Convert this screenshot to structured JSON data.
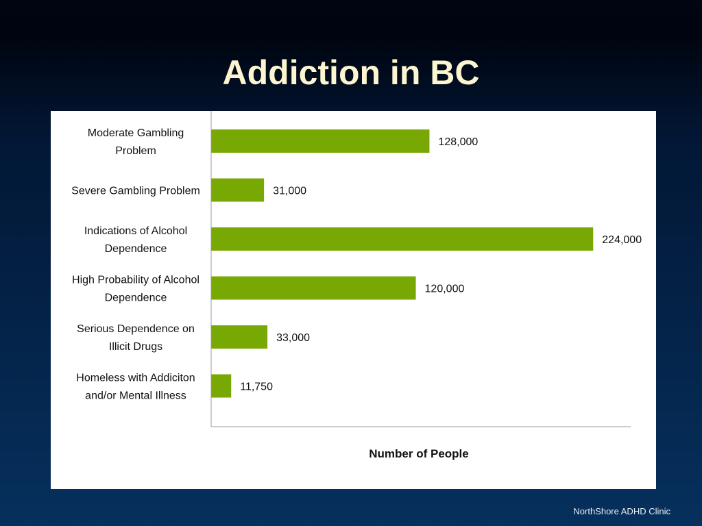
{
  "slide": {
    "title": "Addiction in BC",
    "footer": "NorthShore ADHD Clinic"
  },
  "colors": {
    "bar": "#77a804",
    "axis": "#9a9a9a",
    "title": "#fdf5cf"
  },
  "chart_data": {
    "type": "bar",
    "orientation": "horizontal",
    "categories": [
      [
        "Moderate Gambling",
        "Problem"
      ],
      [
        "Severe Gambling Problem"
      ],
      [
        "Indications of Alcohol",
        "Dependence"
      ],
      [
        "High Probability of Alcohol",
        "Dependence"
      ],
      [
        "Serious Dependence on",
        "Illicit Drugs"
      ],
      [
        "Homeless with Addiciton",
        "and/or Mental Illness"
      ]
    ],
    "values": [
      128000,
      31000,
      224000,
      120000,
      33000,
      11750
    ],
    "data_labels": [
      "128,000",
      "31,000",
      "224,000",
      "120,000",
      "33,000",
      "11,750"
    ],
    "xlabel": "Number of People",
    "ylabel": "",
    "xlim": [
      0,
      246000
    ],
    "grid": false,
    "legend": "none"
  }
}
